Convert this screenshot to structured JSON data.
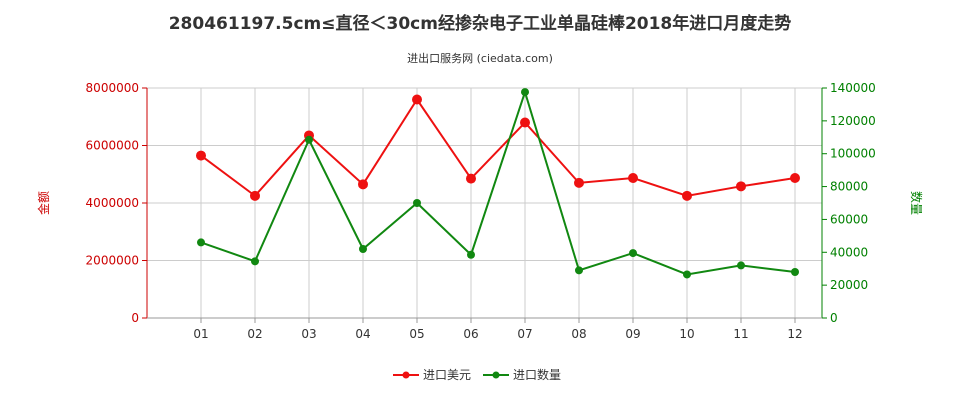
{
  "chart_data": {
    "type": "line",
    "title": "280461197.5cm≤直径＜30cm经掺杂电子工业单晶硅棒2018年进口月度走势",
    "subtitle": "进出口服务网 (ciedata.com)",
    "categories": [
      "01",
      "02",
      "03",
      "04",
      "05",
      "06",
      "07",
      "08",
      "09",
      "10",
      "11",
      "12"
    ],
    "y_left": {
      "label": "金额",
      "ticks": [
        "0",
        "2000000",
        "4000000",
        "6000000",
        "8000000"
      ],
      "range": [
        0,
        8000000
      ]
    },
    "y_right": {
      "label": "数量",
      "ticks": [
        "0",
        "20000",
        "40000",
        "60000",
        "80000",
        "100000",
        "120000",
        "140000"
      ],
      "range": [
        0,
        140000
      ]
    },
    "series": [
      {
        "name": "进口美元",
        "axis": "left",
        "color": "#ee1111",
        "values": [
          5650000,
          4250000,
          6350000,
          4650000,
          7600000,
          4850000,
          6800000,
          4700000,
          4870000,
          4250000,
          4580000,
          4870000
        ]
      },
      {
        "name": "进口数量",
        "axis": "right",
        "color": "#118811",
        "values": [
          46000,
          34500,
          108500,
          42000,
          70000,
          38500,
          137500,
          29000,
          39500,
          26500,
          32000,
          28000
        ]
      }
    ],
    "grid": true,
    "legend_position": "bottom"
  }
}
